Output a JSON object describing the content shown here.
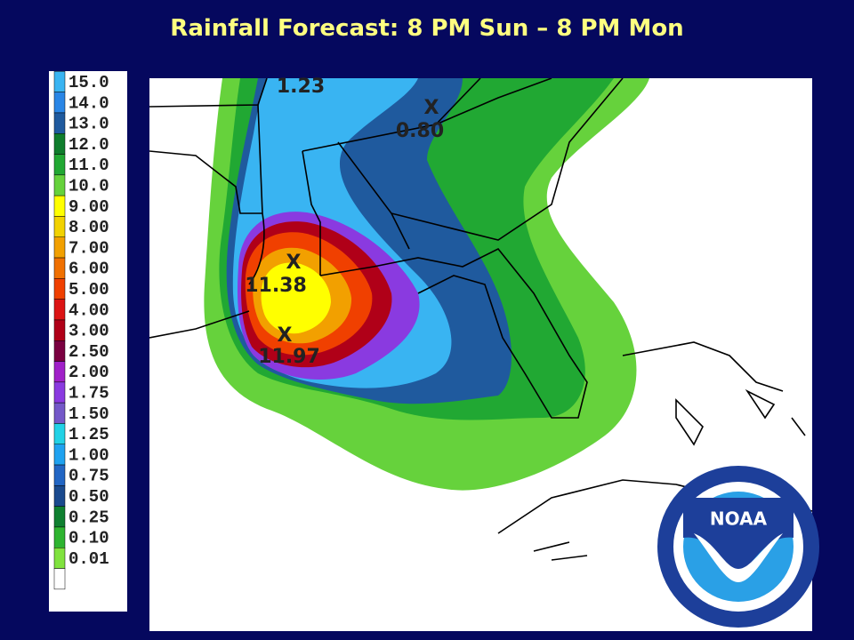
{
  "title": "Rainfall Forecast: 8 PM Sun – 8 PM Mon",
  "legend": [
    {
      "label": "15.0",
      "color": "#39b4f2"
    },
    {
      "label": "14.0",
      "color": "#2a86e6"
    },
    {
      "label": "13.0",
      "color": "#1f5a9e"
    },
    {
      "label": "12.0",
      "color": "#0f7d2c"
    },
    {
      "label": "11.0",
      "color": "#21a833"
    },
    {
      "label": "10.0",
      "color": "#66d23c"
    },
    {
      "label": "9.00",
      "color": "#ffff00"
    },
    {
      "label": "8.00",
      "color": "#f2d200"
    },
    {
      "label": "7.00",
      "color": "#f2a000"
    },
    {
      "label": "6.00",
      "color": "#f07000"
    },
    {
      "label": "5.00",
      "color": "#f04000"
    },
    {
      "label": "4.00",
      "color": "#dc1414"
    },
    {
      "label": "3.00",
      "color": "#b00018"
    },
    {
      "label": "2.50",
      "color": "#7a0040"
    },
    {
      "label": "2.00",
      "color": "#a020c8"
    },
    {
      "label": "1.75",
      "color": "#8a3ae0"
    },
    {
      "label": "1.50",
      "color": "#7458c8"
    },
    {
      "label": "1.25",
      "color": "#22d2e6"
    },
    {
      "label": "1.00",
      "color": "#1fa2f0"
    },
    {
      "label": "0.75",
      "color": "#2266c4"
    },
    {
      "label": "0.50",
      "color": "#1a4a8e"
    },
    {
      "label": "0.25",
      "color": "#0f8030"
    },
    {
      "label": "0.10",
      "color": "#2eb430"
    },
    {
      "label": "0.01",
      "color": "#80e23e"
    }
  ],
  "map": {
    "annotations": [
      {
        "label": "1.23"
      },
      {
        "label": "X"
      },
      {
        "label": "0.80"
      },
      {
        "label": "X"
      },
      {
        "label": "11.38"
      },
      {
        "label": "X"
      },
      {
        "label": "11.97"
      }
    ]
  },
  "logo": {
    "text": "NOAA"
  }
}
